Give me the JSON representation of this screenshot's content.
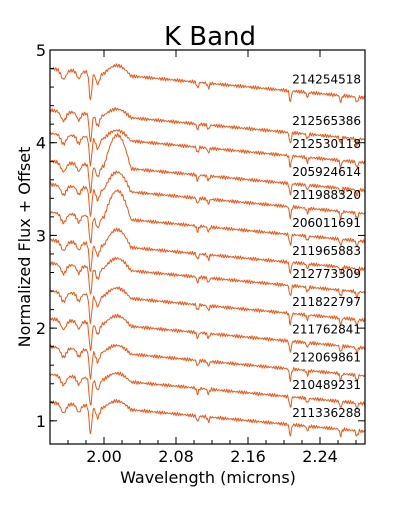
{
  "chart_data": {
    "type": "line",
    "title": "K Band",
    "xlabel": "Wavelength (microns)",
    "ylabel": "Normalized Flux + Offset",
    "xlim": [
      1.94,
      2.29
    ],
    "ylim": [
      0.75,
      5.0
    ],
    "x_ticks": [
      "2.00",
      "2.08",
      "2.16",
      "2.24"
    ],
    "x_tick_values": [
      2.0,
      2.08,
      2.16,
      2.24
    ],
    "y_ticks": [
      "1",
      "2",
      "3",
      "4",
      "5"
    ],
    "y_tick_values": [
      1,
      2,
      3,
      4,
      5
    ],
    "grid": false,
    "legend": "none",
    "line_color": "#e8591c",
    "series": [
      {
        "name": "214254518",
        "offset": 4.8,
        "bump": 0.1
      },
      {
        "name": "212565386",
        "offset": 4.35,
        "bump": 0.08
      },
      {
        "name": "212530118",
        "offset": 4.1,
        "bump": 0.1
      },
      {
        "name": "205924614",
        "offset": 3.8,
        "bump": 0.35
      },
      {
        "name": "211988320",
        "offset": 3.55,
        "bump": 0.2
      },
      {
        "name": "206011691",
        "offset": 3.25,
        "bump": 0.3
      },
      {
        "name": "211965883",
        "offset": 2.95,
        "bump": 0.18
      },
      {
        "name": "212773309",
        "offset": 2.7,
        "bump": 0.12
      },
      {
        "name": "211822797",
        "offset": 2.4,
        "bump": 0.1
      },
      {
        "name": "211762841",
        "offset": 2.1,
        "bump": 0.1
      },
      {
        "name": "212069861",
        "offset": 1.8,
        "bump": 0.08
      },
      {
        "name": "210489231",
        "offset": 1.5,
        "bump": 0.08
      },
      {
        "name": "211336288",
        "offset": 1.2,
        "bump": 0.08
      }
    ]
  }
}
